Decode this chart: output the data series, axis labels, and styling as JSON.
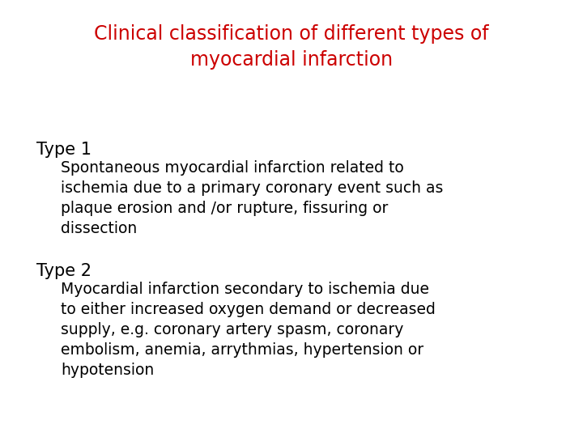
{
  "title_line1": "Clinical classification of different types of",
  "title_line2": "myocardial infarction",
  "title_color": "#cc0000",
  "background_color": "#ffffff",
  "type1_header": "Type 1",
  "type1_body": "Spontaneous myocardial infarction related to\nischemia due to a primary coronary event such as\nplaque erosion and /or rupture, fissuring or\ndissection",
  "type2_header": "Type 2",
  "type2_body": "Myocardial infarction secondary to ischemia due\nto either increased oxygen demand or decreased\nsupply, e.g. coronary artery spasm, coronary\nembolism, anemia, arrythmias, hypertension or\nhypotension",
  "body_color": "#000000",
  "header_color": "#000000",
  "title_fontsize": 17,
  "header_fontsize": 15,
  "body_fontsize": 13.5
}
